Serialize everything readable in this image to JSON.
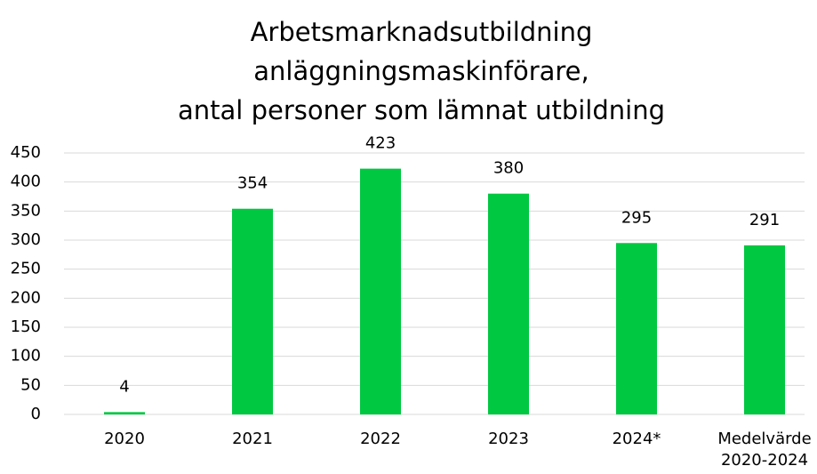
{
  "chart_data": {
    "type": "bar",
    "title": [
      "Arbetsmarknadsutbildning",
      "anläggningsmaskinförare,",
      "antal personer som lämnat utbildning"
    ],
    "categories": [
      "2020",
      "2021",
      "2022",
      "2023",
      "2024*",
      "Medelvärde 2020-2024"
    ],
    "values": [
      4,
      354,
      423,
      380,
      295,
      291
    ],
    "color": "#00c841",
    "ylim": [
      0,
      450
    ],
    "yticks": [
      0,
      50,
      100,
      150,
      200,
      250,
      300,
      350,
      400,
      450
    ],
    "grid": true
  }
}
